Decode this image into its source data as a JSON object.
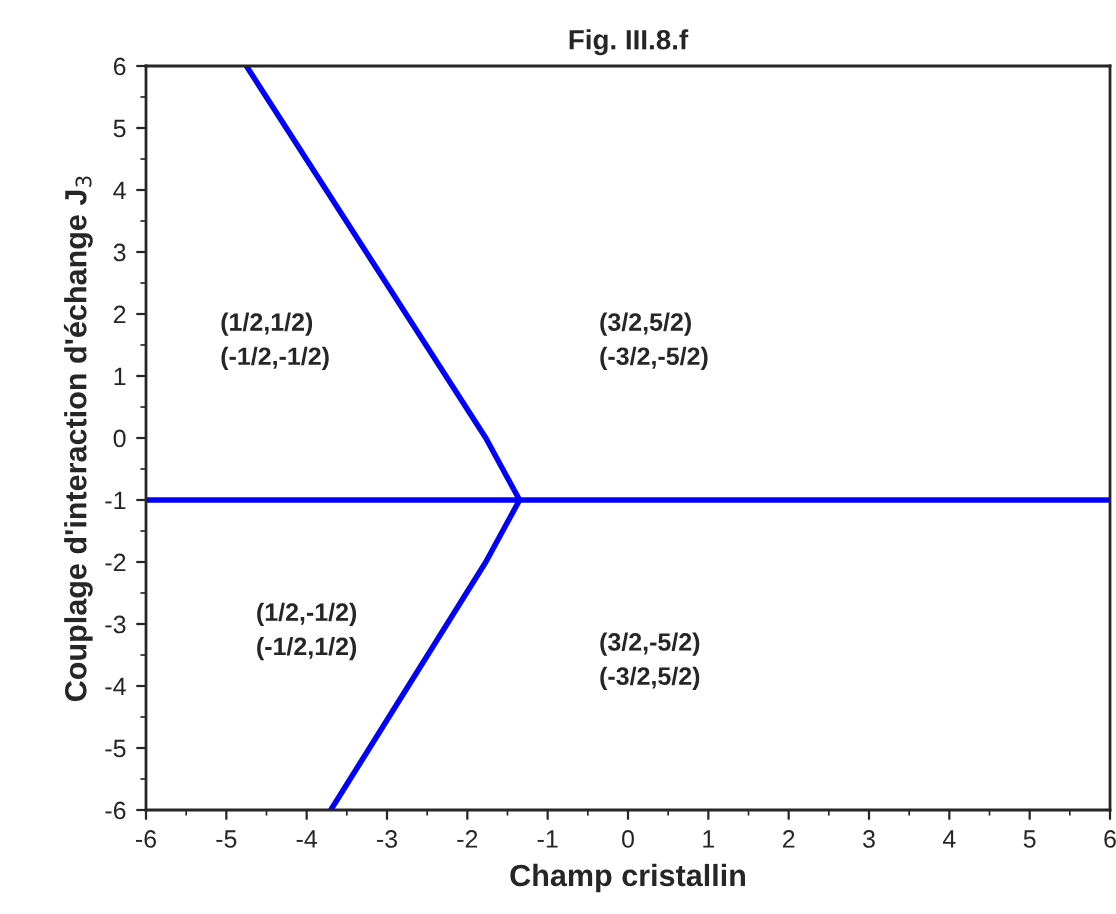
{
  "chart_data": {
    "type": "line",
    "title": "Fig. III.8.f",
    "xlabel": "Champ cristallin",
    "ylabel": "Couplage d'interaction d'échange J$_{3}$",
    "series": [
      {
        "color": "#0000ff",
        "x": [
          -4.75,
          -1.77,
          -1.35
        ],
        "values": [
          6,
          0,
          -1
        ]
      },
      {
        "color": "#0000ff",
        "x": [
          -6,
          -1.35,
          6
        ],
        "values": [
          -1,
          -1,
          -1
        ]
      },
      {
        "color": "#0000ff",
        "x": [
          -1.35,
          -1.77,
          -3.7
        ],
        "values": [
          -1,
          -2,
          -6
        ]
      }
    ],
    "xlim": [
      -6,
      6
    ],
    "ylim": [
      -6,
      6
    ],
    "xticks": [
      -6,
      -5,
      -4,
      -3,
      -2,
      -1,
      0,
      1,
      2,
      3,
      4,
      5,
      6
    ],
    "yticks": [
      -6,
      -5,
      -4,
      -3,
      -2,
      -1,
      0,
      1,
      2,
      3,
      4,
      5,
      6
    ],
    "grid": false,
    "marker": "none",
    "line_style": "solid",
    "annotations": [
      "(1/2,1/2)\n(-1/2,-1/2)",
      "(3/2,5/2)\n(-3/2,-5/2)",
      "(1/2,-1/2)\n(-1/2,1/2)",
      "(3/2,-5/2)\n(-3/2,5/2)"
    ]
  }
}
